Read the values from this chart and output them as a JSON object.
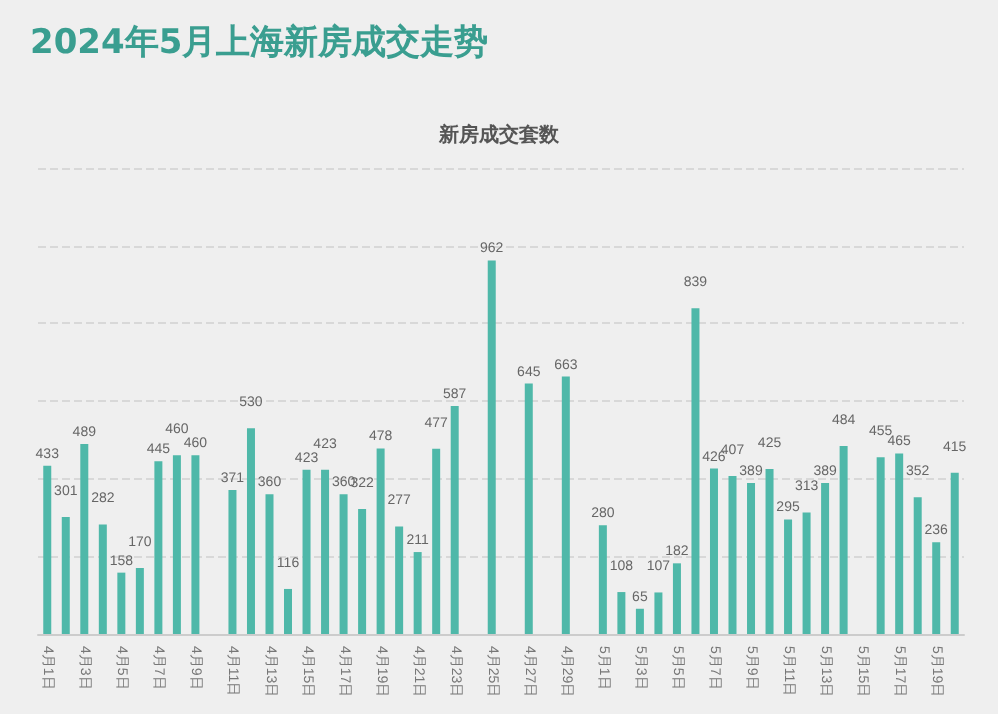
{
  "chart_data": {
    "type": "bar",
    "title": "2024年5月上海新房成交走势",
    "subtitle": "新房成交套数",
    "categories": [
      "4月1日",
      null,
      "4月3日",
      null,
      "4月5日",
      null,
      "4月7日",
      null,
      "4月9日",
      null,
      "4月11日",
      null,
      "4月13日",
      null,
      "4月15日",
      null,
      "4月17日",
      null,
      "4月19日",
      null,
      "4月21日",
      null,
      "4月23日",
      null,
      "4月25日",
      null,
      "4月27日",
      null,
      "4月29日",
      null,
      "5月1日",
      null,
      "5月3日",
      null,
      "5月5日",
      null,
      "5月7日",
      null,
      "5月9日",
      null,
      "5月11日",
      null,
      "5月13日",
      null,
      "5月15日",
      null,
      "5月17日",
      null,
      "5月19日",
      null
    ],
    "values": [
      433,
      301,
      489,
      282,
      158,
      170,
      445,
      460,
      460,
      null,
      371,
      530,
      360,
      116,
      423,
      423,
      360,
      322,
      478,
      277,
      211,
      477,
      587,
      null,
      962,
      null,
      645,
      null,
      663,
      null,
      280,
      108,
      65,
      107,
      182,
      839,
      426,
      407,
      389,
      425,
      295,
      313,
      389,
      484,
      null,
      455,
      465,
      352,
      236,
      415
    ],
    "color": "#4fb8a9",
    "data_labels": true,
    "ylim": [
      0,
      1200
    ],
    "yticks": [
      {
        "value": 0,
        "label": null
      },
      {
        "value": 200,
        "label": null
      },
      {
        "value": 400,
        "label": null
      },
      {
        "value": 600,
        "label": null
      },
      {
        "value": 800,
        "label": null
      },
      {
        "value": 1000,
        "label": null
      },
      {
        "value": 1200,
        "label": null
      }
    ],
    "tick_labels": "x",
    "grid": "y"
  }
}
